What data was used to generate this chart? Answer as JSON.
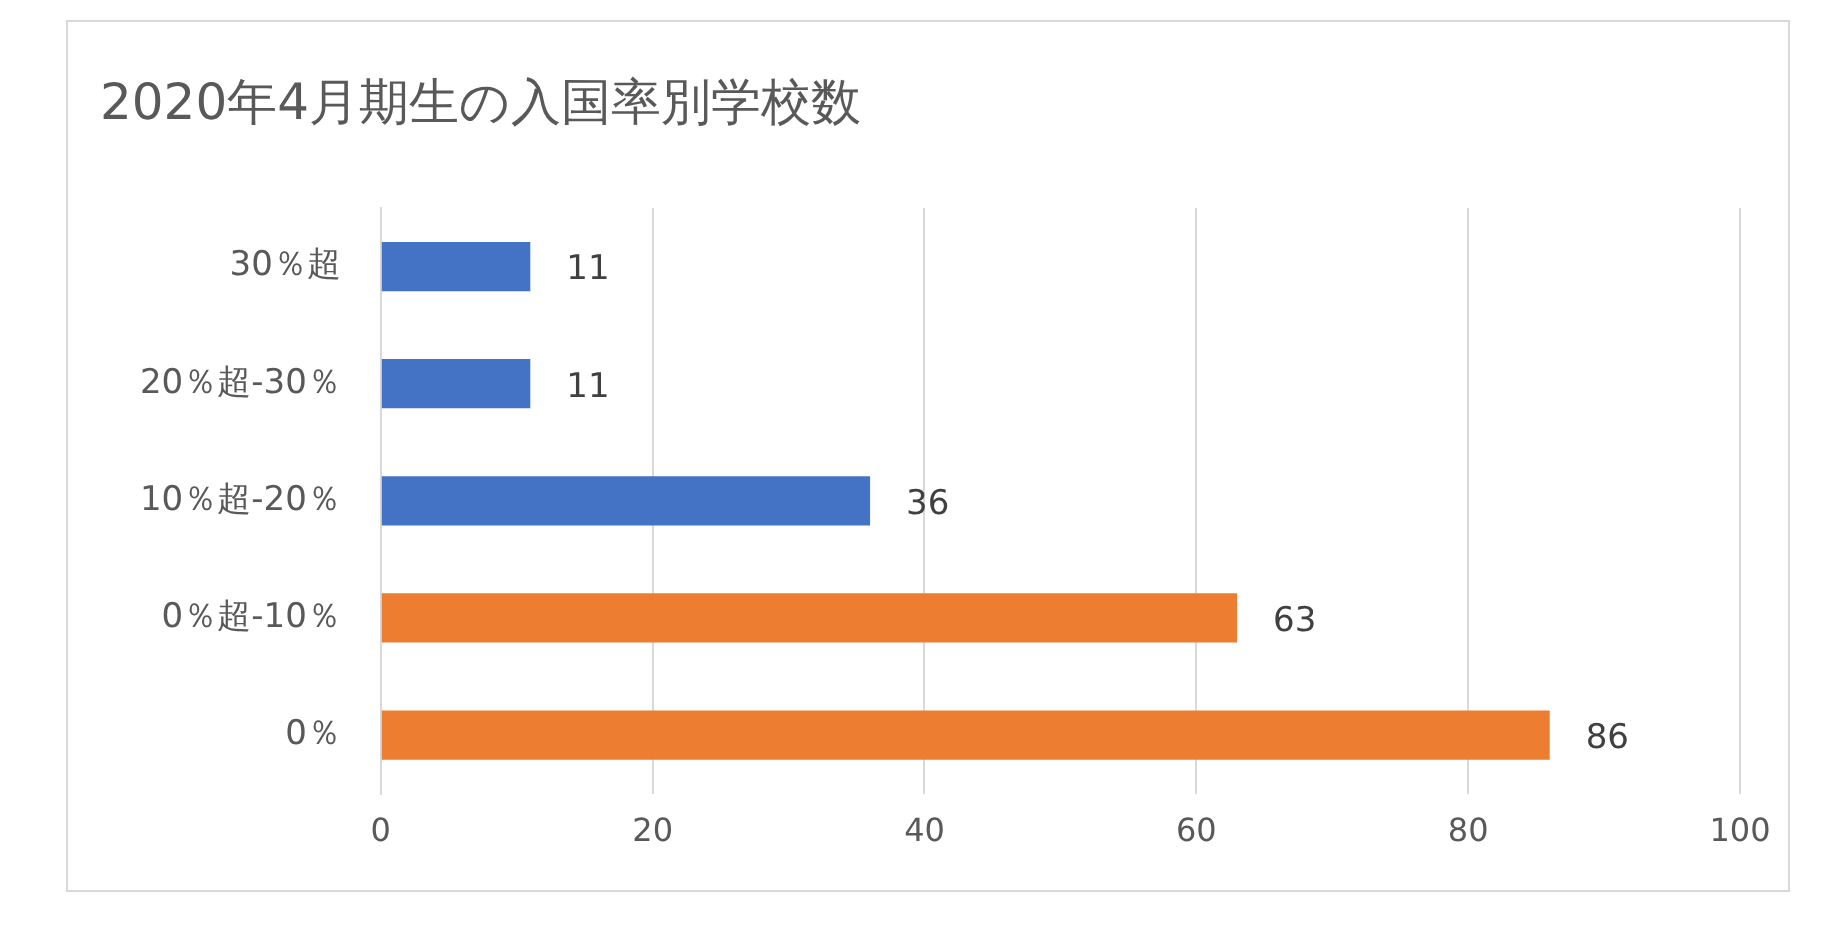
{
  "chart_data": {
    "type": "bar",
    "orientation": "horizontal",
    "title": "2020年4月期生の入国率別学校数",
    "categories": [
      "30％超",
      "20％超-30％",
      "10％超-20％",
      "0％超-10％",
      "0％"
    ],
    "values": [
      11,
      11,
      36,
      63,
      86
    ],
    "colors": [
      "#4472c4",
      "#4472c4",
      "#4472c4",
      "#ed7d31",
      "#ed7d31"
    ],
    "data_labels": true,
    "xlim": [
      0,
      100
    ],
    "xticks": [
      0,
      20,
      40,
      60,
      80,
      100
    ],
    "grid": "x"
  }
}
